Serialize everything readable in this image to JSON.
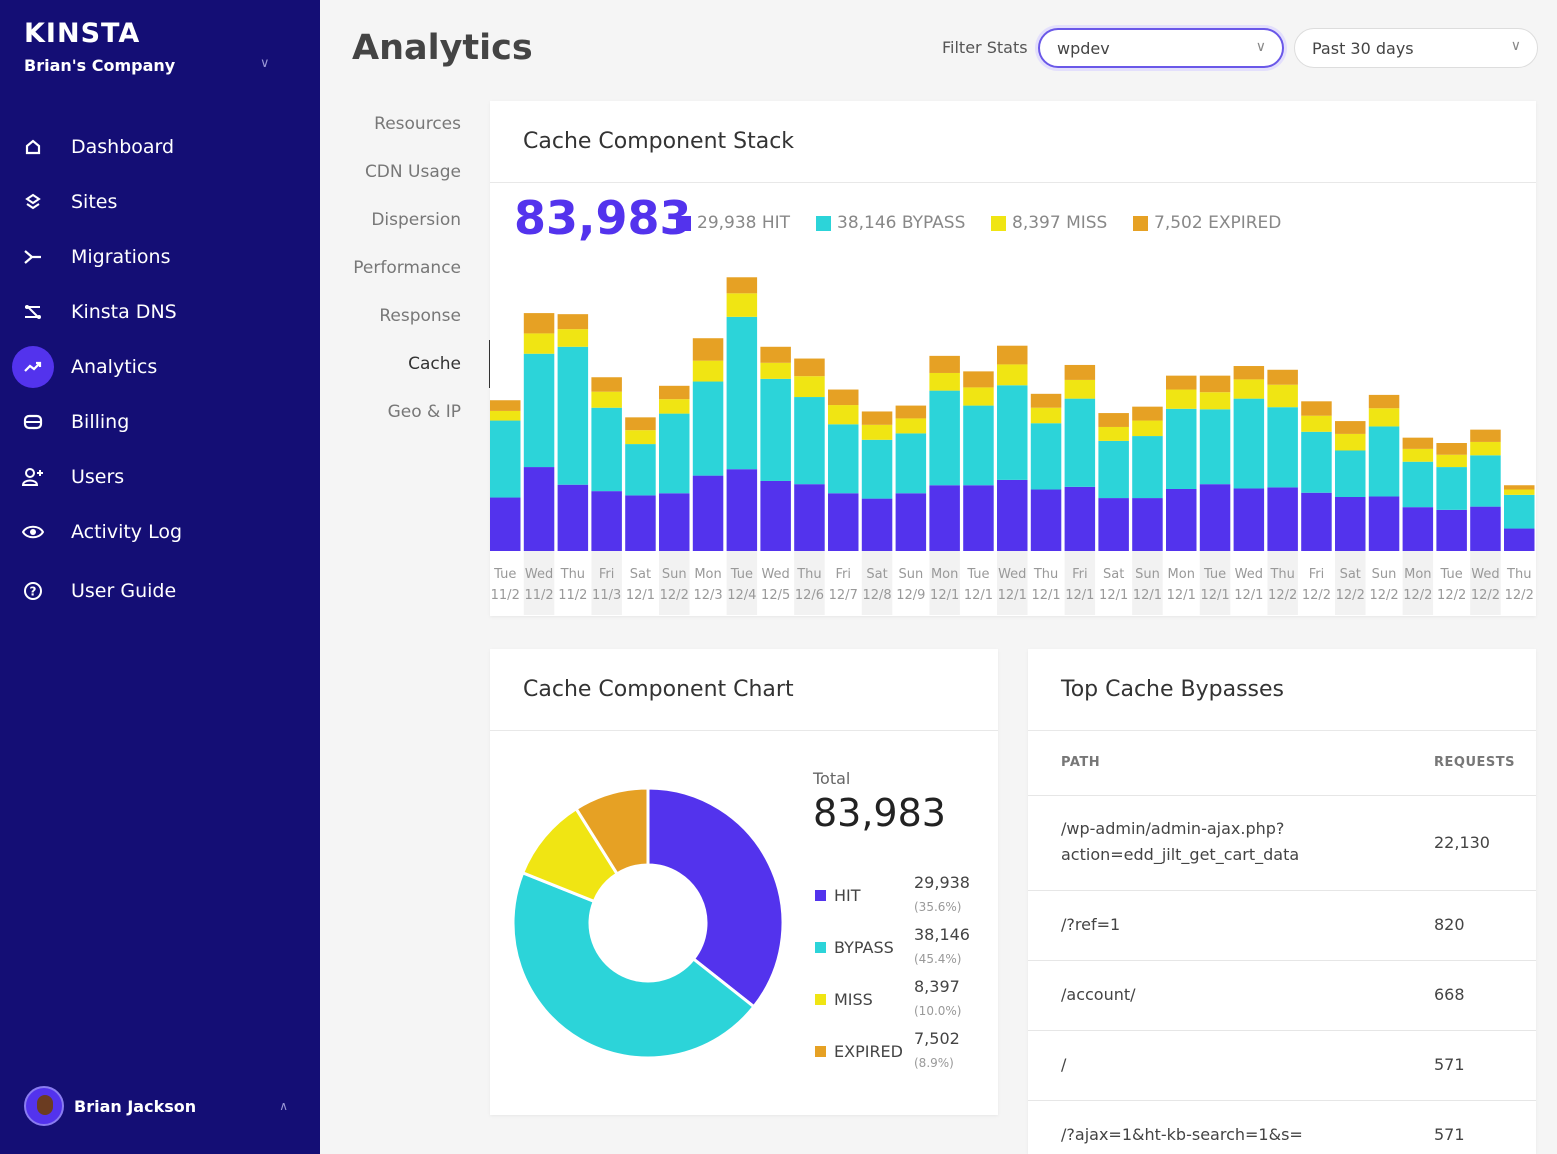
{
  "sidebar": {
    "logo": "KINSTA",
    "company": "Brian's Company",
    "items": [
      {
        "label": "Dashboard",
        "icon": "home-icon"
      },
      {
        "label": "Sites",
        "icon": "layers-icon"
      },
      {
        "label": "Migrations",
        "icon": "migration-arrow-icon"
      },
      {
        "label": "Kinsta DNS",
        "icon": "dns-icon"
      },
      {
        "label": "Analytics",
        "icon": "trend-up-icon",
        "active": true
      },
      {
        "label": "Billing",
        "icon": "card-icon"
      },
      {
        "label": "Users",
        "icon": "add-user-icon"
      },
      {
        "label": "Activity Log",
        "icon": "eye-icon"
      },
      {
        "label": "User Guide",
        "icon": "help-icon"
      }
    ],
    "user": "Brian Jackson"
  },
  "header": {
    "title": "Analytics",
    "filter_label": "Filter Stats",
    "site_select": "wpdev",
    "range_select": "Past 30 days"
  },
  "subnav": [
    "Resources",
    "CDN Usage",
    "Dispersion",
    "Performance",
    "Response",
    "Cache",
    "Geo & IP"
  ],
  "subnav_active": "Cache",
  "colors": {
    "hit": "#5333ed",
    "bypass": "#2cd4d9",
    "miss": "#f0e513",
    "expired": "#e6a124",
    "sidebar": "#140e75"
  },
  "stack_card": {
    "title": "Cache Component Stack",
    "total": "83,983",
    "legend": [
      {
        "label": "29,938 HIT",
        "key": "hit"
      },
      {
        "label": "38,146 BYPASS",
        "key": "bypass"
      },
      {
        "label": "8,397 MISS",
        "key": "miss"
      },
      {
        "label": "7,502 EXPIRED",
        "key": "expired"
      }
    ]
  },
  "chart_data": [
    {
      "type": "bar",
      "stacked": true,
      "title": "Cache Component Stack",
      "categories": [
        "Tue 11/2",
        "Wed 11/2",
        "Thu 11/2",
        "Fri 11/3",
        "Sat 12/1",
        "Sun 12/2",
        "Mon 12/3",
        "Tue 12/4",
        "Wed 12/5",
        "Thu 12/6",
        "Fri 12/7",
        "Sat 12/8",
        "Sun 12/9",
        "Mon 12/1",
        "Tue 12/1",
        "Wed 12/1",
        "Thu 12/1",
        "Fri 12/1",
        "Sat 12/1",
        "Sun 12/1",
        "Mon 12/1",
        "Tue 12/1",
        "Wed 12/1",
        "Thu 12/2",
        "Fri 12/2",
        "Sat 12/2",
        "Sun 12/2",
        "Mon 12/2",
        "Tue 12/2",
        "Wed 12/2",
        "Thu 12/2"
      ],
      "tick_days": [
        "Tue",
        "Wed",
        "Thu",
        "Fri",
        "Sat",
        "Sun",
        "Mon",
        "Tue",
        "Wed",
        "Thu",
        "Fri",
        "Sat",
        "Sun",
        "Mon",
        "Tue",
        "Wed",
        "Thu",
        "Fri",
        "Sat",
        "Sun",
        "Mon",
        "Tue",
        "Wed",
        "Thu",
        "Fri",
        "Sat",
        "Sun",
        "Mon",
        "Tue",
        "Wed",
        "Thu"
      ],
      "tick_dates": [
        "11/2",
        "11/2",
        "11/2",
        "11/3",
        "12/1",
        "12/2",
        "12/3",
        "12/4",
        "12/5",
        "12/6",
        "12/7",
        "12/8",
        "12/9",
        "12/1",
        "12/1",
        "12/1",
        "12/1",
        "12/1",
        "12/1",
        "12/1",
        "12/1",
        "12/1",
        "12/1",
        "12/2",
        "12/2",
        "12/2",
        "12/2",
        "12/2",
        "12/2",
        "12/2",
        "12/2"
      ],
      "series": [
        {
          "name": "HIT",
          "color": "#5333ed",
          "values": [
            1000,
            1570,
            1240,
            1120,
            1040,
            1080,
            1410,
            1530,
            1310,
            1250,
            1080,
            980,
            1080,
            1230,
            1230,
            1330,
            1150,
            1200,
            990,
            990,
            1160,
            1250,
            1170,
            1190,
            1090,
            1010,
            1020,
            820,
            770,
            830,
            420
          ]
        },
        {
          "name": "BYPASS",
          "color": "#2cd4d9",
          "values": [
            1440,
            2120,
            2580,
            1560,
            960,
            1490,
            1760,
            2850,
            1910,
            1630,
            1290,
            1100,
            1120,
            1770,
            1490,
            1770,
            1240,
            1650,
            1070,
            1160,
            1500,
            1400,
            1680,
            1500,
            1140,
            870,
            1310,
            850,
            800,
            960,
            630
          ]
        },
        {
          "name": "MISS",
          "color": "#f0e513",
          "values": [
            180,
            380,
            330,
            300,
            260,
            270,
            390,
            440,
            300,
            390,
            360,
            280,
            280,
            330,
            340,
            390,
            290,
            350,
            260,
            290,
            360,
            320,
            360,
            420,
            300,
            310,
            340,
            240,
            230,
            250,
            100
          ]
        },
        {
          "name": "EXPIRED",
          "color": "#e6a124",
          "values": [
            200,
            380,
            280,
            270,
            240,
            250,
            420,
            300,
            300,
            330,
            290,
            250,
            240,
            320,
            300,
            350,
            260,
            280,
            260,
            260,
            260,
            310,
            250,
            280,
            270,
            240,
            250,
            210,
            220,
            230,
            80
          ]
        }
      ],
      "ylim": [
        0,
        5200
      ]
    },
    {
      "type": "pie",
      "donut": true,
      "title": "Cache Component Chart",
      "categories": [
        "HIT",
        "BYPASS",
        "MISS",
        "EXPIRED"
      ],
      "values": [
        29938,
        38146,
        8397,
        7502
      ],
      "colors": [
        "#5333ed",
        "#2cd4d9",
        "#f0e513",
        "#e6a124"
      ]
    }
  ],
  "pie_card": {
    "title": "Cache Component Chart",
    "total_label": "Total",
    "total": "83,983",
    "legend": [
      {
        "label": "HIT",
        "value": "29,938",
        "pct": "(35.6%)",
        "key": "hit"
      },
      {
        "label": "BYPASS",
        "value": "38,146",
        "pct": "(45.4%)",
        "key": "bypass"
      },
      {
        "label": "MISS",
        "value": "8,397",
        "pct": "(10.0%)",
        "key": "miss"
      },
      {
        "label": "EXPIRED",
        "value": "7,502",
        "pct": "(8.9%)",
        "key": "expired"
      }
    ]
  },
  "bypass_card": {
    "title": "Top Cache Bypasses",
    "col_path": "PATH",
    "col_requests": "REQUESTS",
    "rows": [
      {
        "path_line1": "/wp-admin/admin-ajax.php?",
        "path_line2": "action=edd_jilt_get_cart_data",
        "requests": "22,130"
      },
      {
        "path_line1": "/?ref=1",
        "path_line2": "",
        "requests": "820"
      },
      {
        "path_line1": "/account/",
        "path_line2": "",
        "requests": "668"
      },
      {
        "path_line1": "/",
        "path_line2": "",
        "requests": "571"
      },
      {
        "path_line1": "/?ajax=1&ht-kb-search=1&s=",
        "path_line2": "",
        "requests": "571"
      }
    ]
  }
}
